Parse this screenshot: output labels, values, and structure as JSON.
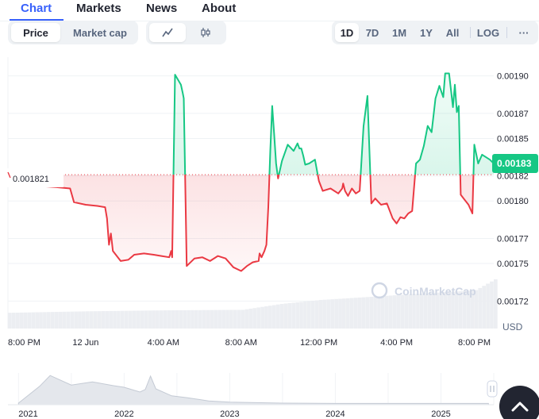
{
  "tabs": [
    {
      "label": "Chart",
      "active": true
    },
    {
      "label": "Markets",
      "active": false
    },
    {
      "label": "News",
      "active": false
    },
    {
      "label": "About",
      "active": false
    }
  ],
  "metric_toggle": [
    "Price",
    "Market cap"
  ],
  "metric_selected": "Price",
  "chart_style_icons": [
    "line-chart-icon",
    "candlestick-icon"
  ],
  "chart_style_selected": "line-chart-icon",
  "ranges": [
    "1D",
    "7D",
    "1M",
    "1Y",
    "All"
  ],
  "range_selected": "1D",
  "log_label": "LOG",
  "more_label": "···",
  "watermark": "CoinMarketCap",
  "colors": {
    "up": "#16c784",
    "down": "#ea3943",
    "accent": "#3861fb",
    "text": "#222531",
    "muted": "#58667e"
  },
  "chart_data": {
    "type": "area",
    "baseline": {
      "value": 0.001821,
      "label": "0.001821"
    },
    "current_price": {
      "value": 0.00183,
      "label": "0.00183"
    },
    "currency": "USD",
    "y_ticks": [
      "0.00190",
      "0.00187",
      "0.00185",
      "0.00182",
      "0.00180",
      "0.00177",
      "0.00175",
      "0.00172"
    ],
    "y_tick_values": [
      0.0019,
      0.00187,
      0.00185,
      0.00182,
      0.0018,
      0.00177,
      0.00175,
      0.00172
    ],
    "ylim": [
      0.001698,
      0.001915
    ],
    "x_ticks": [
      "8:00 PM",
      "12 Jun",
      "4:00 AM",
      "8:00 AM",
      "12:00 PM",
      "4:00 PM",
      "8:00 PM"
    ],
    "x_tick_hours": [
      0,
      4,
      8,
      12,
      16,
      20,
      24
    ],
    "x_unit": "hours since 8:00 PM",
    "series": [
      {
        "x": [
          0.0,
          0.3,
          0.8,
          1.5,
          2.5,
          3.2,
          3.4,
          4.0,
          4.6,
          5.0,
          5.1,
          5.2,
          5.3,
          5.4,
          5.8,
          6.2,
          6.5,
          7.0,
          7.5,
          7.9,
          8.3,
          8.4,
          8.45,
          8.6,
          8.9,
          9.0,
          9.05,
          9.2,
          9.6,
          10.0,
          10.4,
          10.8,
          11.2,
          11.6,
          12.0,
          12.3,
          12.6,
          12.9,
          12.95,
          13.05,
          13.2,
          13.3,
          13.4,
          13.5,
          13.6,
          13.7,
          13.8,
          13.9,
          14.1,
          14.4,
          14.7,
          14.9,
          15.0,
          15.1,
          15.2,
          15.3,
          15.5,
          15.8,
          16.0,
          16.2,
          16.6,
          17.0,
          17.2,
          17.25,
          17.35,
          17.5,
          17.7,
          17.9,
          18.1,
          18.3,
          18.5,
          18.7,
          18.9,
          19.2,
          19.5,
          19.8,
          20.0,
          20.2,
          20.4,
          20.6,
          20.8,
          21.0,
          21.2,
          21.4,
          21.6,
          21.8,
          22.0,
          22.2,
          22.4,
          22.5,
          22.7,
          22.9,
          23.0,
          23.1,
          23.2,
          23.3,
          23.5,
          23.7,
          23.9,
          24.0,
          24.2,
          24.4,
          24.6,
          24.8,
          25.0
        ],
        "values": [
          0.001821,
          0.00182,
          0.001813,
          0.001812,
          0.001811,
          0.00181,
          0.001799,
          0.001797,
          0.001796,
          0.001795,
          0.001786,
          0.001765,
          0.001774,
          0.00176,
          0.001752,
          0.001753,
          0.001757,
          0.001758,
          0.001757,
          0.001756,
          0.001755,
          0.00176,
          0.001755,
          0.001901,
          0.001893,
          0.001886,
          0.001882,
          0.001748,
          0.001754,
          0.001755,
          0.001752,
          0.001756,
          0.001754,
          0.001747,
          0.001744,
          0.001748,
          0.001751,
          0.001752,
          0.001758,
          0.001755,
          0.00176,
          0.001765,
          0.001795,
          0.00184,
          0.001876,
          0.001853,
          0.00183,
          0.001818,
          0.001832,
          0.001845,
          0.00184,
          0.001846,
          0.001842,
          0.001842,
          0.001836,
          0.001829,
          0.00183,
          0.001833,
          0.001816,
          0.001808,
          0.00181,
          0.001806,
          0.00181,
          0.001814,
          0.001808,
          0.001804,
          0.00181,
          0.001806,
          0.001808,
          0.00186,
          0.001884,
          0.001798,
          0.001802,
          0.001797,
          0.001798,
          0.001786,
          0.001782,
          0.001787,
          0.001786,
          0.00179,
          0.001792,
          0.00183,
          0.001833,
          0.001844,
          0.00186,
          0.001855,
          0.001882,
          0.001892,
          0.001883,
          0.001902,
          0.001902,
          0.001875,
          0.001893,
          0.001871,
          0.001876,
          0.001805,
          0.001801,
          0.001797,
          0.00179,
          0.001845,
          0.00183,
          0.001837,
          0.001835,
          0.001833,
          0.00183
        ]
      }
    ],
    "volume_x": [
      0,
      4,
      8,
      12,
      14,
      16,
      20,
      24,
      25
    ],
    "volume": [
      0.32,
      0.35,
      0.37,
      0.38,
      0.5,
      0.58,
      0.68,
      0.78,
      1.0
    ]
  },
  "navigator": {
    "x_ticks": [
      "2021",
      "2022",
      "2023",
      "2024",
      "2025"
    ],
    "x_tick_years": [
      2021,
      2022,
      2023,
      2024,
      2025
    ],
    "x_range": [
      2020.9,
      2025.5
    ],
    "years": [
      2021.0,
      2021.2,
      2021.3,
      2021.5,
      2021.7,
      2021.9,
      2022.0,
      2022.15,
      2022.2,
      2022.25,
      2022.3,
      2022.45,
      2022.6,
      2022.8,
      2023.0,
      2023.5,
      2024.0,
      2024.5,
      2025.0,
      2025.45
    ],
    "levels": [
      0.05,
      0.58,
      0.92,
      0.62,
      0.72,
      0.6,
      0.55,
      0.4,
      0.48,
      0.9,
      0.5,
      0.28,
      0.22,
      0.12,
      0.08,
      0.05,
      0.04,
      0.04,
      0.04,
      0.04
    ]
  }
}
